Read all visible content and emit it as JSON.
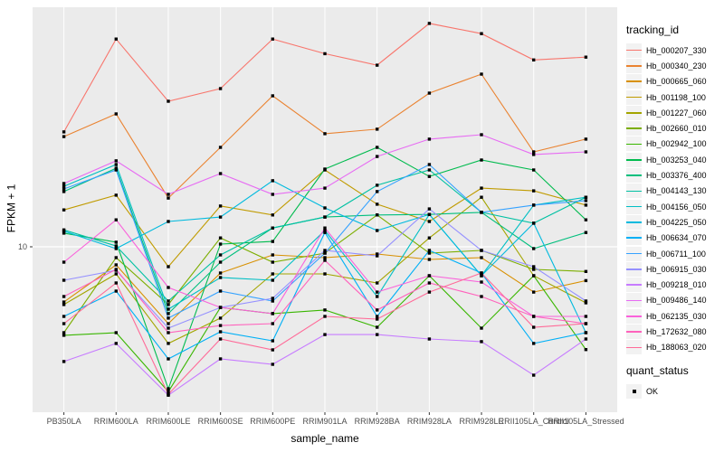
{
  "legend": {
    "tracking_title": "tracking_id",
    "quant_title": "quant_status",
    "ok_label": "OK"
  },
  "theme": {
    "panel_bg": "#EBEBEB",
    "grid_color": "#FFFFFF",
    "tick_text_color": "#4D4D4D",
    "tick_mark_color": "#333333",
    "point_color": "#000000",
    "legend_key_bg": "#F2F2F2"
  },
  "chart_data": {
    "type": "line",
    "title": "",
    "xlabel": "sample_name",
    "ylabel": "FPKM + 1",
    "y_axis": {
      "scale": "log10",
      "ticks": [
        {
          "value": 10,
          "label": "10"
        }
      ],
      "range_approx": [
        1.3,
        210
      ]
    },
    "grid": "major-on",
    "legend_position": "right",
    "point_marker": "black-square",
    "categories": [
      "PB350LA",
      "RRIM600LA",
      "RRIM600LE",
      "RRIM600SE",
      "RRIM600PE",
      "RRIM901LA",
      "RRIM928BA",
      "RRIM928LA",
      "RRIM928LE",
      "RRII105LA_Control",
      "RRII105LA_Stressed"
    ],
    "series": [
      {
        "name": "Hb_000207_330",
        "color": "#F8766D",
        "values": [
          43.2,
          141,
          63.8,
          75,
          141,
          117,
          101,
          172,
          151,
          108,
          112
        ]
      },
      {
        "name": "Hb_000340_230",
        "color": "#EA8331",
        "values": [
          40.7,
          54.3,
          18.6,
          35.5,
          68.4,
          42.2,
          44.7,
          70.8,
          90.2,
          33.5,
          39.4
        ]
      },
      {
        "name": "Hb_000665_060",
        "color": "#D89000",
        "values": [
          4.95,
          7.94,
          3.76,
          7.16,
          9.02,
          8.71,
          9.12,
          8.51,
          8.71,
          5.62,
          6.5
        ]
      },
      {
        "name": "Hb_001198_100",
        "color": "#C09B00",
        "values": [
          16,
          19.3,
          7.76,
          16.8,
          15,
          26.6,
          17.2,
          13.8,
          21.1,
          20.4,
          17
        ]
      },
      {
        "name": "Hb_001227_060",
        "color": "#A3A500",
        "values": [
          4.79,
          7.08,
          2.92,
          4.03,
          7.08,
          7.08,
          6.31,
          11.2,
          18.8,
          6.92,
          4.9
        ]
      },
      {
        "name": "Hb_002660_010",
        "color": "#7CAE00",
        "values": [
          3.35,
          8.71,
          4.79,
          11.2,
          8.22,
          9.23,
          15,
          9.23,
          9.55,
          7.5,
          7.3
        ]
      },
      {
        "name": "Hb_002942_100",
        "color": "#39B600",
        "values": [
          3.24,
          3.35,
          1.58,
          4.62,
          4.27,
          4.47,
          3.59,
          6.92,
          3.55,
          6.92,
          2.7
        ]
      },
      {
        "name": "Hb_003253_040",
        "color": "#00BB4E",
        "values": [
          11.9,
          10.6,
          1.64,
          10.35,
          10.7,
          26.9,
          35.5,
          24.5,
          30.2,
          26.6,
          14.1
        ]
      },
      {
        "name": "Hb_003376_400",
        "color": "#00BF7D",
        "values": [
          20.2,
          27.2,
          4.27,
          8.22,
          12.7,
          14.6,
          15,
          15.1,
          15.5,
          9.77,
          12
        ]
      },
      {
        "name": "Hb_004143_130",
        "color": "#00C1A3",
        "values": [
          12.4,
          10.1,
          5.01,
          9.02,
          12.7,
          14.6,
          21.9,
          26.6,
          15.5,
          13.5,
          18.8
        ]
      },
      {
        "name": "Hb_004156_050",
        "color": "#00BFC4",
        "values": [
          21.6,
          28.5,
          4.52,
          6.76,
          6.53,
          12.3,
          5.31,
          15.1,
          6.92,
          17,
          18.8
        ]
      },
      {
        "name": "Hb_004225_050",
        "color": "#00BADE",
        "values": [
          12.2,
          9.77,
          13.8,
          14.6,
          23.2,
          16.4,
          12.3,
          15.1,
          6.92,
          13.5,
          3.35
        ]
      },
      {
        "name": "Hb_006634_070",
        "color": "#00B0F6",
        "values": [
          4.12,
          5.69,
          2.4,
          3.39,
          3.02,
          12,
          4.12,
          9.55,
          7.16,
          2.92,
          3.35
        ]
      },
      {
        "name": "Hb_006711_100",
        "color": "#35A2FF",
        "values": [
          20.9,
          26.6,
          4.03,
          5.69,
          5.01,
          9.23,
          20.2,
          28.5,
          15.5,
          17,
          18
        ]
      },
      {
        "name": "Hb_006915_030",
        "color": "#9590FF",
        "values": [
          6.53,
          7.41,
          3.55,
          4.62,
          5.19,
          9.55,
          8.91,
          16.2,
          9.55,
          7.76,
          5.01
        ]
      },
      {
        "name": "Hb_009218_010",
        "color": "#C77CFF",
        "values": [
          2.32,
          2.92,
          1.51,
          2.4,
          2.24,
          3.27,
          3.27,
          3.09,
          2.99,
          1.95,
          3.09
        ]
      },
      {
        "name": "Hb_009486_140",
        "color": "#E76BF3",
        "values": [
          22.4,
          29.9,
          19.5,
          25.4,
          19.5,
          21.1,
          31.6,
          39.4,
          41.7,
          32.4,
          33.5
        ]
      },
      {
        "name": "Hb_062135_030",
        "color": "#FA62DB",
        "values": [
          8.22,
          14.1,
          5.96,
          4.62,
          4.27,
          12.7,
          5.62,
          6.92,
          6.38,
          4.12,
          4.12
        ]
      },
      {
        "name": "Hb_172632_080",
        "color": "#FF62BC",
        "values": [
          5.31,
          7.5,
          3.35,
          3.67,
          3.76,
          8.41,
          4.47,
          6.31,
          5.31,
          4.12,
          3.76
        ]
      },
      {
        "name": "Hb_188063_020",
        "color": "#FF6A98",
        "values": [
          3.76,
          6.31,
          1.53,
          3.09,
          2.69,
          4.12,
          3.98,
          5.62,
          7.16,
          3.59,
          3.76
        ]
      }
    ]
  }
}
